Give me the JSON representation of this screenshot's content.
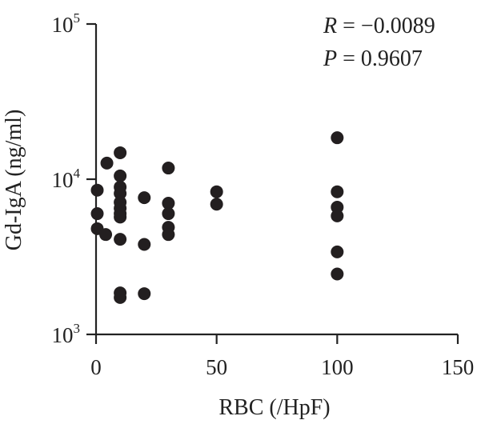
{
  "chart_data": {
    "type": "scatter",
    "title": "",
    "xlabel": "RBC (/HpF)",
    "ylabel": "Gd-IgA (ng/ml)",
    "xlim": [
      0,
      150
    ],
    "ylim": [
      1000,
      100000
    ],
    "yscale": "log",
    "grid": false,
    "x_ticks": [
      0,
      50,
      100,
      150
    ],
    "x_tick_labels": [
      "0",
      "50",
      "100",
      "150"
    ],
    "y_ticks": [
      1000,
      10000,
      100000
    ],
    "y_tick_labels": [
      {
        "base": "10",
        "exp": "3"
      },
      {
        "base": "10",
        "exp": "4"
      },
      {
        "base": "10",
        "exp": "5"
      }
    ],
    "annotations": [
      {
        "var": "R",
        "rest": " = −0.0089"
      },
      {
        "var": "P",
        "rest": " = 0.9607"
      }
    ],
    "marker_color": "#231f20",
    "points": [
      {
        "x": 0.5,
        "y": 8500
      },
      {
        "x": 0.5,
        "y": 6000
      },
      {
        "x": 0.5,
        "y": 4800
      },
      {
        "x": 4,
        "y": 4400
      },
      {
        "x": 4.5,
        "y": 12700
      },
      {
        "x": 10,
        "y": 14800
      },
      {
        "x": 10,
        "y": 10500
      },
      {
        "x": 10,
        "y": 8900
      },
      {
        "x": 10,
        "y": 8100
      },
      {
        "x": 10,
        "y": 7100
      },
      {
        "x": 10,
        "y": 6500
      },
      {
        "x": 10,
        "y": 6000
      },
      {
        "x": 10,
        "y": 5700
      },
      {
        "x": 10,
        "y": 4100
      },
      {
        "x": 10,
        "y": 1850
      },
      {
        "x": 10,
        "y": 1730
      },
      {
        "x": 20,
        "y": 7600
      },
      {
        "x": 20,
        "y": 3800
      },
      {
        "x": 20,
        "y": 1830
      },
      {
        "x": 30,
        "y": 11800
      },
      {
        "x": 30,
        "y": 7000
      },
      {
        "x": 30,
        "y": 6000
      },
      {
        "x": 30,
        "y": 4900
      },
      {
        "x": 30,
        "y": 4400
      },
      {
        "x": 50,
        "y": 8300
      },
      {
        "x": 50,
        "y": 6900
      },
      {
        "x": 100,
        "y": 18500
      },
      {
        "x": 100,
        "y": 8300
      },
      {
        "x": 100,
        "y": 6600
      },
      {
        "x": 100,
        "y": 5800
      },
      {
        "x": 100,
        "y": 3400
      },
      {
        "x": 100,
        "y": 2450
      }
    ]
  }
}
